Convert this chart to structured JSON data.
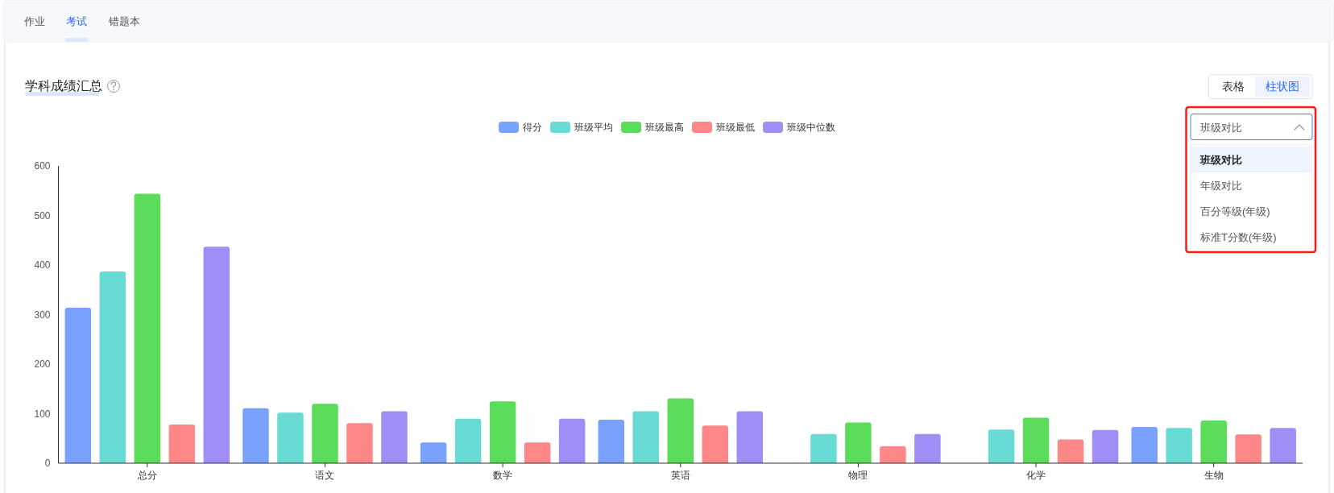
{
  "chart_data": {
    "type": "bar",
    "title": "学科成绩汇总",
    "categories": [
      "总分",
      "语文",
      "数学",
      "英语",
      "物理",
      "化学",
      "生物"
    ],
    "series": [
      {
        "name": "得分",
        "color": "#79a2fe",
        "values": [
          314,
          111,
          42,
          88,
          null,
          null,
          73
        ]
      },
      {
        "name": "班级平均",
        "color": "#68dcd4",
        "values": [
          387,
          102,
          90,
          105,
          59,
          68,
          71
        ]
      },
      {
        "name": "班级最高",
        "color": "#5bdc5a",
        "values": [
          544,
          120,
          125,
          131,
          82,
          92,
          86
        ]
      },
      {
        "name": "班级最低",
        "color": "#ff8787",
        "values": [
          78,
          81,
          42,
          76,
          34,
          48,
          58
        ]
      },
      {
        "name": "班级中位数",
        "color": "#a18df6",
        "values": [
          437,
          105,
          90,
          105,
          59,
          67,
          71
        ]
      }
    ],
    "ylim": [
      0,
      600
    ],
    "yticks": [
      0,
      100,
      200,
      300,
      400,
      500,
      600
    ],
    "grid": false,
    "legend": "top",
    "annotations": [
      "作业",
      "考试",
      "错题本",
      "表格",
      "柱状图",
      "班级对比",
      "班级对比",
      "年级对比",
      "百分等级(年级)",
      "标准T分数(年级)"
    ]
  }
}
